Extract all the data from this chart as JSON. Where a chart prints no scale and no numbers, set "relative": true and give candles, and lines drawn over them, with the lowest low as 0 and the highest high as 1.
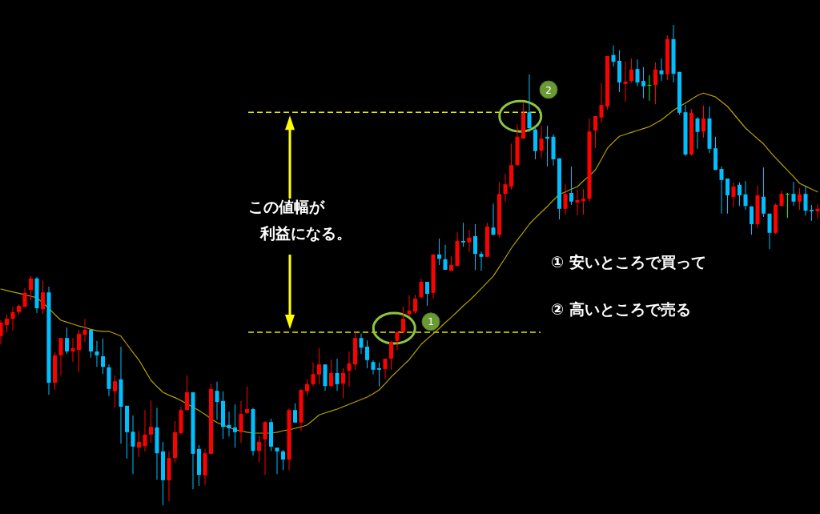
{
  "chart_data": {
    "type": "candlestick",
    "relative": true,
    "categories": [
      null,
      null,
      null,
      null,
      null,
      null,
      null,
      null,
      null,
      null,
      null,
      null,
      null,
      null,
      null,
      null,
      null,
      null,
      null,
      null,
      null,
      null,
      null,
      null,
      null,
      null,
      null,
      null,
      null,
      null,
      null,
      null,
      null,
      null,
      null,
      null,
      null,
      null,
      null,
      null,
      null,
      null,
      null,
      null,
      null,
      null,
      null,
      null,
      null,
      null,
      null,
      null,
      null,
      null,
      null,
      null,
      null,
      null,
      null,
      null,
      null,
      null,
      null,
      null,
      null,
      null,
      null,
      null,
      null,
      null,
      null,
      null,
      null,
      null,
      null,
      null,
      null,
      null,
      null,
      null,
      null,
      null,
      null,
      null,
      null,
      null,
      null,
      null,
      null,
      null,
      null,
      null,
      null,
      null,
      null,
      null,
      null,
      null,
      null,
      null,
      null,
      null,
      null,
      null,
      null,
      null,
      null,
      null,
      null,
      null,
      null,
      null,
      null,
      null,
      null,
      null,
      null,
      null,
      null,
      null,
      null,
      null,
      null,
      null,
      null,
      null,
      null,
      null,
      null,
      null,
      null,
      null,
      null,
      null,
      null,
      null,
      null
    ],
    "ohlc": [
      [
        0.352,
        0.385,
        0.335,
        0.38
      ],
      [
        0.375,
        0.397,
        0.36,
        0.388
      ],
      [
        0.388,
        0.413,
        0.363,
        0.402
      ],
      [
        0.402,
        0.418,
        0.397,
        0.415
      ],
      [
        0.413,
        0.452,
        0.413,
        0.442
      ],
      [
        0.448,
        0.477,
        0.427,
        0.472
      ],
      [
        0.472,
        0.475,
        0.4,
        0.41
      ],
      [
        0.408,
        0.467,
        0.398,
        0.443
      ],
      [
        0.443,
        0.455,
        0.23,
        0.255
      ],
      [
        0.255,
        0.318,
        0.24,
        0.312
      ],
      [
        0.312,
        0.348,
        0.27,
        0.348
      ],
      [
        0.348,
        0.37,
        0.315,
        0.32
      ],
      [
        0.32,
        0.348,
        0.298,
        0.327
      ],
      [
        0.323,
        0.365,
        0.277,
        0.357
      ],
      [
        0.355,
        0.388,
        0.34,
        0.365
      ],
      [
        0.365,
        0.365,
        0.307,
        0.32
      ],
      [
        0.32,
        0.342,
        0.288,
        0.312
      ],
      [
        0.31,
        0.347,
        0.273,
        0.288
      ],
      [
        0.287,
        0.293,
        0.227,
        0.242
      ],
      [
        0.237,
        0.27,
        0.203,
        0.258
      ],
      [
        0.262,
        0.33,
        0.128,
        0.205
      ],
      [
        0.207,
        0.207,
        0.097,
        0.152
      ],
      [
        0.153,
        0.187,
        0.065,
        0.122
      ],
      [
        0.12,
        0.155,
        0.1,
        0.132
      ],
      [
        0.123,
        0.198,
        0.112,
        0.147
      ],
      [
        0.147,
        0.218,
        0.13,
        0.163
      ],
      [
        0.162,
        0.203,
        0.053,
        0.108
      ],
      [
        0.112,
        0.132,
        0,
        0.052
      ],
      [
        0.052,
        0.112,
        0.008,
        0.098
      ],
      [
        0.098,
        0.175,
        0.088,
        0.152
      ],
      [
        0.15,
        0.205,
        0.148,
        0.198
      ],
      [
        0.198,
        0.27,
        0.198,
        0.235
      ],
      [
        0.235,
        0.235,
        0.033,
        0.107
      ],
      [
        0.117,
        0.125,
        0.04,
        0.063
      ],
      [
        0.062,
        0.117,
        0.042,
        0.108
      ],
      [
        0.107,
        0.253,
        0.107,
        0.242
      ],
      [
        0.238,
        0.257,
        0.178,
        0.215
      ],
      [
        0.217,
        0.237,
        0.138,
        0.163
      ],
      [
        0.167,
        0.195,
        0.143,
        0.16
      ],
      [
        0.162,
        0.21,
        0.12,
        0.152
      ],
      [
        0.152,
        0.217,
        0.13,
        0.19
      ],
      [
        0.192,
        0.247,
        0.19,
        0.2
      ],
      [
        0.2,
        0.203,
        0.103,
        0.113
      ],
      [
        0.113,
        0.145,
        0.09,
        0.132
      ],
      [
        0.137,
        0.175,
        0.063,
        0.173
      ],
      [
        0.173,
        0.18,
        0.113,
        0.122
      ],
      [
        0.12,
        0.12,
        0.065,
        0.112
      ],
      [
        0.112,
        0.115,
        0.073,
        0.095
      ],
      [
        0.095,
        0.202,
        0.073,
        0.198
      ],
      [
        0.198,
        0.212,
        0.172,
        0.172
      ],
      [
        0.172,
        0.242,
        0.155,
        0.24
      ],
      [
        0.237,
        0.262,
        0.228,
        0.252
      ],
      [
        0.252,
        0.297,
        0.248,
        0.273
      ],
      [
        0.272,
        0.327,
        0.252,
        0.293
      ],
      [
        0.293,
        0.293,
        0.238,
        0.248
      ],
      [
        0.248,
        0.303,
        0.247,
        0.275
      ],
      [
        0.275,
        0.305,
        0.238,
        0.252
      ],
      [
        0.253,
        0.285,
        0.223,
        0.275
      ],
      [
        0.28,
        0.32,
        0.247,
        0.295
      ],
      [
        0.293,
        0.36,
        0.282,
        0.348
      ],
      [
        0.348,
        0.357,
        0.315,
        0.328
      ],
      [
        0.33,
        0.343,
        0.285,
        0.302
      ],
      [
        0.298,
        0.302,
        0.272,
        0.282
      ],
      [
        0.285,
        0.297,
        0.247,
        0.282
      ],
      [
        0.283,
        0.305,
        0.263,
        0.305
      ],
      [
        0.305,
        0.342,
        0.282,
        0.34
      ],
      [
        0.342,
        0.362,
        0.323,
        0.36
      ],
      [
        0.36,
        0.413,
        0.36,
        0.388
      ],
      [
        0.398,
        0.437,
        0.393,
        0.405
      ],
      [
        0.403,
        0.438,
        0.398,
        0.43
      ],
      [
        0.433,
        0.472,
        0.43,
        0.465
      ],
      [
        0.465,
        0.465,
        0.415,
        0.44
      ],
      [
        0.442,
        0.522,
        0.43,
        0.522
      ],
      [
        0.522,
        0.555,
        0.5,
        0.513
      ],
      [
        0.512,
        0.542,
        0.49,
        0.49
      ],
      [
        0.488,
        0.518,
        0.488,
        0.5
      ],
      [
        0.498,
        0.568,
        0.498,
        0.55
      ],
      [
        0.55,
        0.588,
        0.538,
        0.547
      ],
      [
        0.547,
        0.573,
        0.527,
        0.557
      ],
      [
        0.56,
        0.585,
        0.49,
        0.523
      ],
      [
        0.523,
        0.528,
        0.488,
        0.517
      ],
      [
        0.517,
        0.588,
        0.517,
        0.58
      ],
      [
        0.578,
        0.628,
        0.562,
        0.563
      ],
      [
        0.563,
        0.673,
        0.557,
        0.648
      ],
      [
        0.648,
        0.69,
        0.632,
        0.668
      ],
      [
        0.663,
        0.753,
        0.657,
        0.708
      ],
      [
        0.708,
        0.793,
        0.707,
        0.767
      ],
      [
        0.763,
        0.837,
        0.763,
        0.817
      ],
      [
        0.818,
        0.897,
        0.777,
        0.785
      ],
      [
        0.782,
        0.788,
        0.72,
        0.737
      ],
      [
        0.738,
        0.79,
        0.723,
        0.763
      ],
      [
        0.767,
        0.79,
        0.705,
        0.763
      ],
      [
        0.767,
        0.772,
        0.707,
        0.72
      ],
      [
        0.722,
        0.722,
        0.595,
        0.617
      ],
      [
        0.617,
        0.668,
        0.605,
        0.648
      ],
      [
        0.65,
        0.705,
        0.625,
        0.632
      ],
      [
        0.63,
        0.657,
        0.603,
        0.635
      ],
      [
        0.633,
        0.658,
        0.605,
        0.638
      ],
      [
        0.638,
        0.805,
        0.632,
        0.778
      ],
      [
        0.78,
        0.81,
        0.743,
        0.81
      ],
      [
        0.807,
        0.878,
        0.797,
        0.833
      ],
      [
        0.83,
        0.935,
        0.823,
        0.935
      ],
      [
        0.937,
        0.957,
        0.913,
        0.923
      ],
      [
        0.925,
        0.947,
        0.86,
        0.88
      ],
      [
        0.877,
        0.923,
        0.84,
        0.882
      ],
      [
        0.883,
        0.93,
        0.88,
        0.907
      ],
      [
        0.908,
        0.928,
        0.872,
        0.88
      ],
      [
        0.883,
        0.912,
        0.847,
        0.872
      ],
      [
        0.875,
        0.895,
        0.842,
        0.875
      ],
      [
        0.875,
        0.922,
        0.835,
        0.907
      ],
      [
        0.905,
        0.93,
        0.883,
        0.897
      ],
      [
        0.897,
        0.978,
        0.885,
        0.97
      ],
      [
        0.97,
        1.0,
        0.88,
        0.898
      ],
      [
        0.902,
        0.902,
        0.813,
        0.817
      ],
      [
        0.818,
        0.833,
        0.727,
        0.73
      ],
      [
        0.73,
        0.825,
        0.728,
        0.817
      ],
      [
        0.805,
        0.808,
        0.742,
        0.777
      ],
      [
        0.778,
        0.832,
        0.765,
        0.805
      ],
      [
        0.805,
        0.83,
        0.733,
        0.742
      ],
      [
        0.743,
        0.767,
        0.698,
        0.698
      ],
      [
        0.7,
        0.705,
        0.607,
        0.677
      ],
      [
        0.68,
        0.68,
        0.607,
        0.645
      ],
      [
        0.642,
        0.672,
        0.62,
        0.663
      ],
      [
        0.667,
        0.672,
        0.623,
        0.645
      ],
      [
        0.647,
        0.675,
        0.615,
        0.623
      ],
      [
        0.622,
        0.622,
        0.563,
        0.585
      ],
      [
        0.585,
        0.665,
        0.577,
        0.645
      ],
      [
        0.642,
        0.703,
        0.6,
        0.607
      ],
      [
        0.607,
        0.607,
        0.533,
        0.567
      ],
      [
        0.567,
        0.628,
        0.565,
        0.625
      ],
      [
        0.623,
        0.655,
        0.623,
        0.648
      ],
      [
        0.648,
        0.65,
        0.598,
        0.648
      ],
      [
        0.648,
        0.673,
        0.623,
        0.632
      ],
      [
        0.632,
        0.66,
        0.615,
        0.647
      ],
      [
        0.648,
        0.663,
        0.603,
        0.613
      ],
      [
        0.615,
        0.625,
        0.592,
        0.612
      ],
      [
        0.612,
        0.627,
        0.597,
        0.617
      ]
    ],
    "colors": [
      "#ff0000",
      "#ff0000",
      "#ff0000",
      "#ff0000",
      "#ff0000",
      "#ff0000",
      "#00bfff",
      "#ff0000",
      "#00bfff",
      "#ff0000",
      "#ff0000",
      "#00bfff",
      "#ff0000",
      "#ff0000",
      "#ff0000",
      "#00bfff",
      "#00bfff",
      "#00bfff",
      "#00bfff",
      "#ff0000",
      "#00bfff",
      "#00bfff",
      "#00bfff",
      "#ff0000",
      "#ff0000",
      "#ff0000",
      "#00bfff",
      "#00bfff",
      "#ff0000",
      "#ff0000",
      "#ff0000",
      "#ff0000",
      "#00bfff",
      "#00bfff",
      "#ff0000",
      "#ff0000",
      "#00bfff",
      "#00bfff",
      "#00bfff",
      "#00bfff",
      "#ff0000",
      "#ff0000",
      "#00bfff",
      "#ff0000",
      "#ff0000",
      "#00bfff",
      "#00bfff",
      "#00bfff",
      "#ff0000",
      "#00bfff",
      "#ff0000",
      "#ff0000",
      "#ff0000",
      "#ff0000",
      "#00bfff",
      "#ff0000",
      "#00bfff",
      "#ff0000",
      "#ff0000",
      "#ff0000",
      "#00bfff",
      "#00bfff",
      "#00bfff",
      "#00bfff",
      "#ff0000",
      "#ff0000",
      "#ff0000",
      "#ff0000",
      "#ff0000",
      "#ff0000",
      "#ff0000",
      "#00bfff",
      "#ff0000",
      "#00bfff",
      "#00bfff",
      "#ff0000",
      "#ff0000",
      "#00bfff",
      "#ff0000",
      "#00bfff",
      "#00bfff",
      "#ff0000",
      "#00bfff",
      "#ff0000",
      "#ff0000",
      "#ff0000",
      "#ff0000",
      "#ff0000",
      "#00bfff",
      "#00bfff",
      "#ff0000",
      "#00bfff",
      "#00bfff",
      "#00bfff",
      "#ff0000",
      "#00bfff",
      "#ff0000",
      "#ff0000",
      "#ff0000",
      "#ff0000",
      "#ff0000",
      "#ff0000",
      "#00bfff",
      "#00bfff",
      "#ff0000",
      "#ff0000",
      "#00bfff",
      "#00bfff",
      "#00ff00",
      "#ff0000",
      "#00bfff",
      "#ff0000",
      "#00bfff",
      "#00bfff",
      "#00bfff",
      "#ff0000",
      "#00bfff",
      "#ff0000",
      "#00bfff",
      "#00bfff",
      "#00bfff",
      "#00bfff",
      "#ff0000",
      "#00bfff",
      "#00bfff",
      "#00bfff",
      "#ff0000",
      "#00bfff",
      "#00bfff",
      "#ff0000",
      "#ff0000",
      "#00ff00",
      "#00bfff",
      "#ff0000",
      "#00bfff",
      "#00bfff",
      "#ff0000"
    ],
    "series": [
      {
        "type": "line",
        "color": "#b8a000",
        "values": [
          0.45,
          0.447,
          0.444,
          0.441,
          0.438,
          0.435,
          0.432,
          0.421,
          0.41,
          0.397,
          0.385,
          0.381,
          0.377,
          0.373,
          0.37,
          0.366,
          0.363,
          0.362,
          0.362,
          0.357,
          0.352,
          0.335,
          0.318,
          0.302,
          0.281,
          0.26,
          0.247,
          0.235,
          0.229,
          0.224,
          0.218,
          0.211,
          0.204,
          0.197,
          0.189,
          0.18,
          0.172,
          0.167,
          0.162,
          0.157,
          0.155,
          0.152,
          0.15,
          0.15,
          0.15,
          0.15,
          0.152,
          0.155,
          0.157,
          0.16,
          0.163,
          0.167,
          0.177,
          0.188,
          0.192,
          0.196,
          0.2,
          0.205,
          0.21,
          0.215,
          0.22,
          0.225,
          0.232,
          0.24,
          0.253,
          0.267,
          0.279,
          0.291,
          0.303,
          0.319,
          0.335,
          0.346,
          0.357,
          0.368,
          0.38,
          0.391,
          0.403,
          0.415,
          0.426,
          0.438,
          0.451,
          0.464,
          0.477,
          0.496,
          0.515,
          0.535,
          0.552,
          0.568,
          0.585,
          0.598,
          0.61,
          0.622,
          0.635,
          0.647,
          0.652,
          0.658,
          0.663,
          0.675,
          0.686,
          0.698,
          0.72,
          0.743,
          0.756,
          0.768,
          0.772,
          0.776,
          0.78,
          0.784,
          0.788,
          0.795,
          0.802,
          0.812,
          0.822,
          0.83,
          0.837,
          0.845,
          0.853,
          0.858,
          0.854,
          0.85,
          0.84,
          0.83,
          0.815,
          0.8,
          0.785,
          0.774,
          0.763,
          0.752,
          0.737,
          0.723,
          0.71,
          0.697,
          0.684,
          0.67,
          0.664,
          0.658,
          0.652
        ]
      }
    ],
    "ref_lines": [
      {
        "axis": "y",
        "value": 0.818,
        "color": "#e6e600",
        "line_style": "dashed"
      },
      {
        "axis": "y",
        "value": 0.36,
        "color": "#e6e600",
        "line_style": "dashed"
      }
    ],
    "annotations": [
      "この値幅が",
      "利益になる。",
      "①  安いところで買って",
      "②  高いところで売る",
      {
        "text": "1",
        "y": 0.382
      },
      {
        "text": "2",
        "y": 0.865
      }
    ]
  }
}
